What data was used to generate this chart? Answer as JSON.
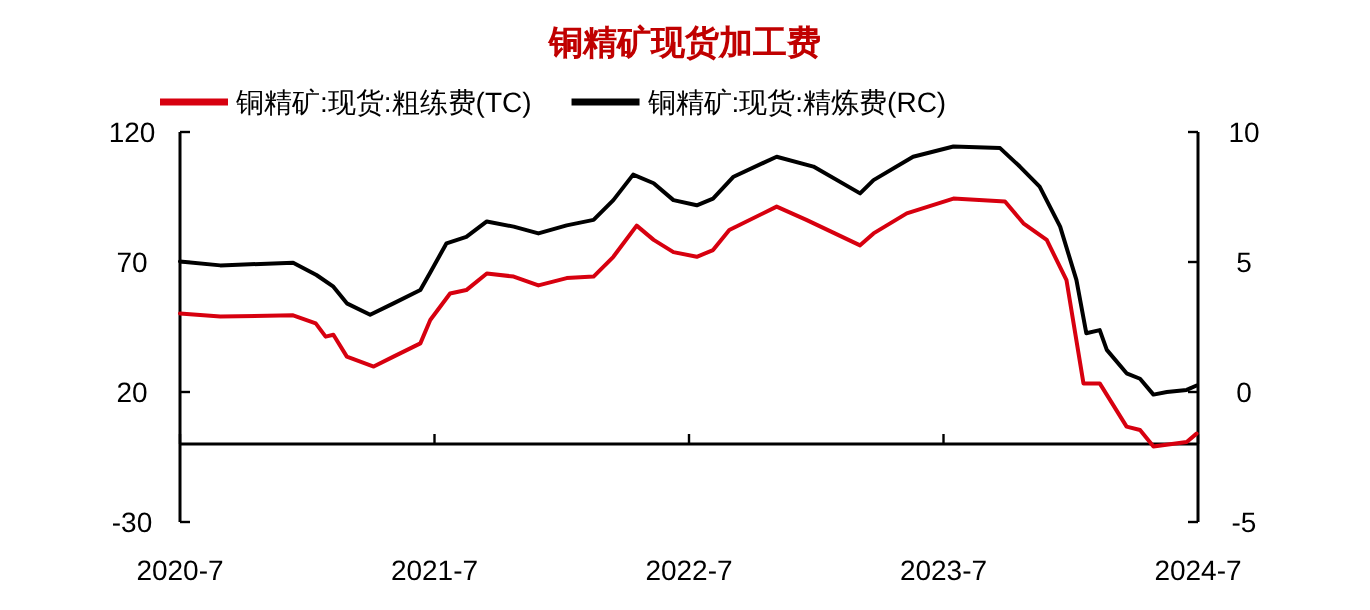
{
  "chart_data": {
    "type": "line",
    "title": "铜精矿现货加工费",
    "xlim": [
      "2020-07-01",
      "2024-07-01"
    ],
    "xticks": [
      {
        "value": "2020-07-01",
        "label": "2020-7"
      },
      {
        "value": "2021-07-01",
        "label": "2021-7"
      },
      {
        "value": "2022-07-01",
        "label": "2022-7"
      },
      {
        "value": "2023-07-01",
        "label": "2023-7"
      },
      {
        "value": "2024-07-01",
        "label": "2024-7"
      }
    ],
    "ylim": [
      -30,
      120
    ],
    "yticks": [
      -30,
      20,
      70,
      120
    ],
    "y2lim": [
      -5,
      10
    ],
    "y2ticks": [
      -5,
      0,
      5,
      10
    ],
    "legend": "top",
    "grid": false,
    "marker": "none",
    "line_style": "solid",
    "series": [
      {
        "name": "铜精矿:现货:粗练费(TC)",
        "color": "#d7000f",
        "axis": "y",
        "x": [
          "2020-07-01",
          "2020-08-28",
          "2020-12-11",
          "2021-01-13",
          "2021-01-27",
          "2021-02-08",
          "2021-02-27",
          "2021-04-05",
          "2021-05-03",
          "2021-06-11",
          "2021-06-25",
          "2021-07-23",
          "2021-08-16",
          "2021-09-15",
          "2021-10-23",
          "2021-11-28",
          "2022-01-08",
          "2022-02-16",
          "2022-03-14",
          "2022-04-17",
          "2022-05-11",
          "2022-06-09",
          "2022-07-12",
          "2022-08-05",
          "2022-08-28",
          "2022-11-05",
          "2022-12-17",
          "2023-03-03",
          "2023-03-22",
          "2023-05-09",
          "2023-07-15",
          "2023-09-28",
          "2023-10-24",
          "2023-11-27",
          "2023-12-25",
          "2024-01-19",
          "2024-02-12",
          "2024-03-20",
          "2024-04-09",
          "2024-04-28",
          "2024-06-15",
          "2024-06-29"
        ],
        "values": [
          50.2,
          49,
          49.5,
          46.4,
          41.3,
          42,
          33.6,
          29.8,
          33.6,
          38.7,
          47.7,
          57.9,
          59.2,
          65.6,
          64.4,
          61,
          63.8,
          64.4,
          72,
          84,
          78.5,
          73.8,
          72,
          74.6,
          82.3,
          91.3,
          86.2,
          76.4,
          81,
          88.7,
          94.4,
          93.3,
          84.9,
          78.5,
          63,
          23.3,
          23.3,
          6.7,
          5.4,
          -1,
          0.8,
          4
        ]
      },
      {
        "name": "铜精矿:现货:精炼费(RC)",
        "color": "#000000",
        "axis": "y2",
        "x": [
          "2020-07-01",
          "2020-08-28",
          "2020-12-11",
          "2021-01-14",
          "2021-02-08",
          "2021-02-27",
          "2021-03-30",
          "2021-05-03",
          "2021-06-11",
          "2021-06-25",
          "2021-07-18",
          "2021-08-16",
          "2021-09-15",
          "2021-10-23",
          "2021-11-28",
          "2022-01-08",
          "2022-02-16",
          "2022-03-14",
          "2022-04-12",
          "2022-05-11",
          "2022-06-09",
          "2022-07-12",
          "2022-08-05",
          "2022-09-04",
          "2022-11-05",
          "2022-12-27",
          "2023-03-03",
          "2023-03-22",
          "2023-05-18",
          "2023-07-15",
          "2023-09-21",
          "2023-10-19",
          "2023-11-17",
          "2023-12-16",
          "2024-01-09",
          "2024-01-23",
          "2024-02-12",
          "2024-02-22",
          "2024-03-20",
          "2024-04-09",
          "2024-04-28",
          "2024-05-17",
          "2024-06-15",
          "2024-06-29"
        ],
        "values": [
          5.02,
          4.87,
          4.97,
          4.5,
          4.05,
          3.41,
          2.97,
          3.41,
          3.92,
          4.6,
          5.72,
          5.97,
          6.56,
          6.36,
          6.1,
          6.41,
          6.62,
          7.38,
          8.36,
          8.03,
          7.38,
          7.18,
          7.44,
          8.28,
          9.05,
          8.67,
          7.64,
          8.15,
          9.05,
          9.44,
          9.38,
          8.67,
          7.9,
          6.36,
          4.31,
          2.26,
          2.38,
          1.62,
          0.72,
          0.51,
          -0.1,
          0,
          0.08,
          0.25
        ]
      }
    ]
  }
}
